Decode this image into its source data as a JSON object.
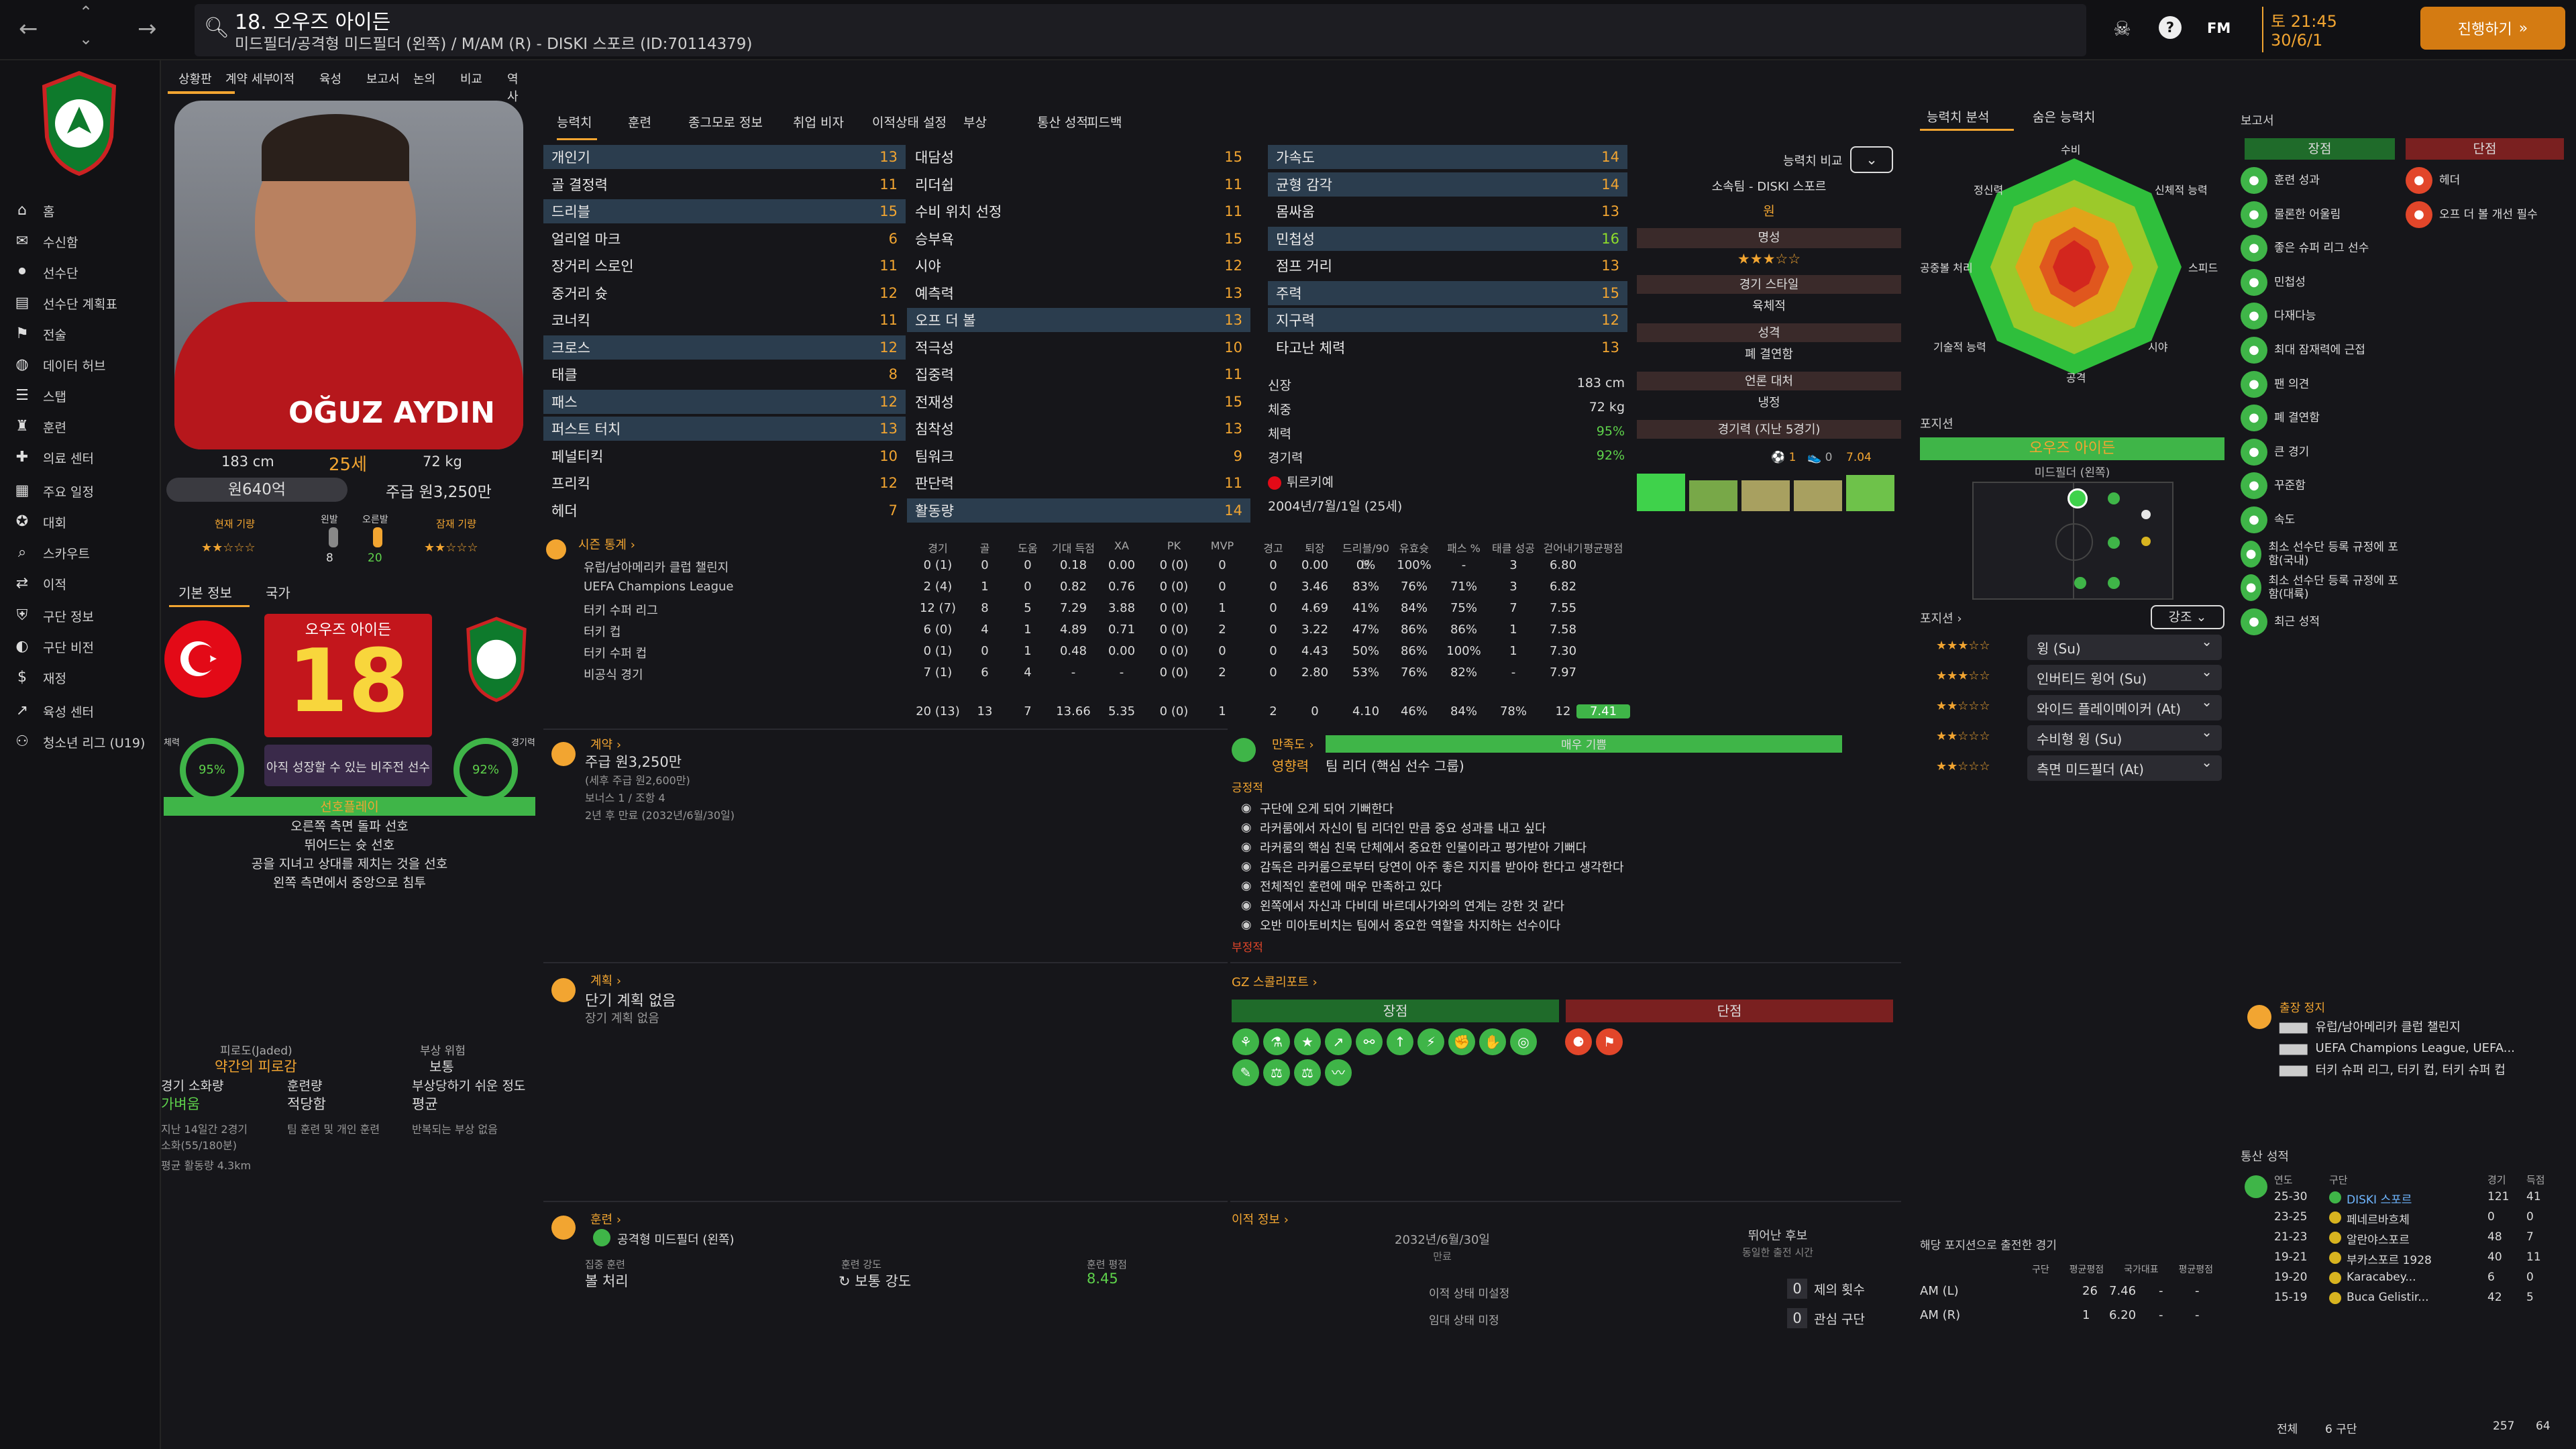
{
  "header": {
    "player_title": "18. 오우즈 아이든",
    "subtitle": "미드필더/공격형 미드필더 (왼쪽) / M/AM (R) - DISKI 스포르 (ID:70114379)",
    "date_time": "토 21:45",
    "date": "30/6/1",
    "continue_label": "진행하기",
    "fm_label": "FM"
  },
  "sidebar": {
    "items": [
      {
        "label": "홈",
        "icon": "home-icon"
      },
      {
        "label": "수신함",
        "icon": "inbox-icon"
      },
      {
        "label": "선수단",
        "icon": "squad-icon"
      },
      {
        "label": "선수단 계획표",
        "icon": "plan-icon"
      },
      {
        "label": "전술",
        "icon": "tactics-icon"
      },
      {
        "label": "데이터 허브",
        "icon": "data-icon"
      },
      {
        "label": "스탭",
        "icon": "staff-icon"
      },
      {
        "label": "훈련",
        "icon": "training-icon"
      },
      {
        "label": "의료 센터",
        "icon": "medical-icon"
      },
      {
        "label": "주요 일정",
        "icon": "calendar-icon"
      },
      {
        "label": "대회",
        "icon": "competition-icon"
      },
      {
        "label": "스카우트",
        "icon": "scout-icon"
      },
      {
        "label": "이적",
        "icon": "transfer-icon"
      },
      {
        "label": "구단 정보",
        "icon": "club-icon"
      },
      {
        "label": "구단 비전",
        "icon": "vision-icon"
      },
      {
        "label": "재정",
        "icon": "finance-icon"
      },
      {
        "label": "육성 센터",
        "icon": "dev-icon"
      },
      {
        "label": "청소년 리그 (U19)",
        "icon": "youth-icon"
      }
    ]
  },
  "subnav": [
    "상황판",
    "계약 세부",
    "이적",
    "육성",
    "보고서",
    "논의",
    "비교",
    "역사"
  ],
  "profile": {
    "name_on_photo": "OĞUZ AYDIN",
    "height": "183 cm",
    "age": "25세",
    "weight": "72 kg",
    "value": "원640억",
    "wage": "주급 원3,250만",
    "current_ability": "현재 기량",
    "potential_ability": "잠재 기량",
    "left_foot_label": "왼발",
    "right_foot_label": "오른발",
    "left_foot": "8",
    "right_foot": "20",
    "tab_basic": "기본 정보",
    "tab_nation": "국가",
    "kit_name": "오우즈 아이든",
    "kit_number": "18",
    "kit_note": "아직 성장할 수 있는 비주전 선수",
    "fitness_label": "체력",
    "fitness": "95%",
    "sharp_label": "경기력",
    "sharp": "92%",
    "traits_title": "선호플레이",
    "traits": [
      "오른쪽 측면 돌파 선호",
      "뛰어드는 슛 선호",
      "공을 지녀고 상대를 제치는 것을 선호",
      "왼쪽 측면에서 중앙으로 침투"
    ]
  },
  "condition": {
    "fatigue_label": "피로도(Jaded)",
    "fatigue_val": "약간의 피로감",
    "inj_label": "부상 위험",
    "inj_val": "보통",
    "load_label": "경기 소화량",
    "load_val": "가벼움",
    "train_label": "훈련량",
    "train_val": "적당함",
    "inj_prone": "부상당하기 쉬운 정도",
    "inj_prone_val": "평균",
    "load_note1": "지난 14일간 2경기",
    "load_note2": "소화(55/180분)",
    "load_note3": "평균 활동량 4.3km",
    "train_note": "팀 훈련 및 개인 훈련",
    "inj_note": "반복되는 부상 없음"
  },
  "tabs": [
    "능력치",
    "훈련",
    "종그모로 정보",
    "취업 비자",
    "이적상태 설정",
    "부상",
    "통산 성적",
    "피드백"
  ],
  "attrs1": [
    [
      "개인기",
      "13"
    ],
    [
      "골 결정력",
      "11"
    ],
    [
      "드리블",
      "15"
    ],
    [
      "얼리얼 마크",
      "6"
    ],
    [
      "장거리 스로인",
      "11"
    ],
    [
      "중거리 슛",
      "12"
    ],
    [
      "코너킥",
      "11"
    ],
    [
      "크로스",
      "12"
    ],
    [
      "태클",
      "8"
    ],
    [
      "패스",
      "12"
    ],
    [
      "퍼스트 터치",
      "13"
    ],
    [
      "페널티킥",
      "10"
    ],
    [
      "프리킥",
      "12"
    ],
    [
      "헤더",
      "7"
    ]
  ],
  "attrs2": [
    [
      "대담성",
      "15"
    ],
    [
      "리더쉽",
      "11"
    ],
    [
      "수비 위치 선정",
      "11"
    ],
    [
      "승부욕",
      "15"
    ],
    [
      "시야",
      "12"
    ],
    [
      "예측력",
      "13"
    ],
    [
      "오프 더 볼",
      "13"
    ],
    [
      "적극성",
      "10"
    ],
    [
      "집중력",
      "11"
    ],
    [
      "전재성",
      "15"
    ],
    [
      "침착성",
      "13"
    ],
    [
      "팀워크",
      "9"
    ],
    [
      "판단력",
      "11"
    ],
    [
      "활동량",
      "14"
    ]
  ],
  "attrs3": [
    [
      "가속도",
      "14"
    ],
    [
      "균형 감각",
      "14"
    ],
    [
      "몸싸움",
      "13"
    ],
    [
      "민첩성",
      "16"
    ],
    [
      "점프 거리",
      "13"
    ],
    [
      "주력",
      "15"
    ],
    [
      "지구력",
      "12"
    ],
    [
      "타고난 체력",
      "13"
    ]
  ],
  "phys_info": {
    "height_l": "신장",
    "height": "183 cm",
    "weight_l": "체중",
    "weight": "72 kg",
    "fit_l": "체력",
    "fit": "95%",
    "sharp_l": "경기력",
    "sharp": "92%",
    "nation": "튀르키예",
    "dob": "2004년/7월/1일 (25세)"
  },
  "compare": {
    "label": "능력치 비교",
    "club": "소속팀 - DISKI 스포르",
    "won": "원",
    "rep_l": "명성",
    "style_l": "경기 스타일",
    "style": "육체적",
    "pers_l": "성격",
    "pers": "폐 결연함",
    "media_l": "언론 대처",
    "media": "냉정",
    "form_l": "경기력 (지난 5경기)",
    "goals": "1",
    "assists": "0",
    "rating": "7.04"
  },
  "season": {
    "title": "시즌 통계",
    "headers": [
      "경기",
      "골",
      "도움",
      "기대 득점",
      "XA",
      "PK",
      "MVP",
      "경고",
      "퇴장",
      "드리블/90분",
      "유효슛",
      "패스 %",
      "태클 성공",
      "걷어내기",
      "평균평점"
    ],
    "rows": [
      [
        "유럽/남아메리카 클럽 챌린지",
        "0 (1)",
        "0",
        "0",
        "0.18",
        "0.00",
        "0 (0)",
        "0",
        "0",
        "0.00",
        "0%",
        "100%",
        "-",
        "3",
        "6.80"
      ],
      [
        "UEFA Champions League",
        "2 (4)",
        "1",
        "0",
        "0.82",
        "0.76",
        "0 (0)",
        "0",
        "0",
        "3.46",
        "83%",
        "76%",
        "71%",
        "3",
        "6.82"
      ],
      [
        "터키 수퍼 리그",
        "12 (7)",
        "8",
        "5",
        "7.29",
        "3.88",
        "0 (0)",
        "1",
        "0",
        "4.69",
        "41%",
        "84%",
        "75%",
        "7",
        "7.55"
      ],
      [
        "터키 컵",
        "6 (0)",
        "4",
        "1",
        "4.89",
        "0.71",
        "0 (0)",
        "2",
        "0",
        "3.22",
        "47%",
        "86%",
        "86%",
        "1",
        "7.58"
      ],
      [
        "터키 수퍼 컵",
        "0 (1)",
        "0",
        "1",
        "0.48",
        "0.00",
        "0 (0)",
        "0",
        "0",
        "4.43",
        "50%",
        "86%",
        "100%",
        "1",
        "7.30"
      ],
      [
        "비공식 경기",
        "7 (1)",
        "6",
        "4",
        "-",
        "-",
        "0 (0)",
        "2",
        "0",
        "2.80",
        "53%",
        "76%",
        "82%",
        "-",
        "7.97"
      ]
    ],
    "total": [
      "20 (13)",
      "13",
      "7",
      "13.66",
      "5.35",
      "0 (0)",
      "1",
      "2",
      "0",
      "4.10",
      "46%",
      "84%",
      "78%",
      "12",
      "7.41"
    ]
  },
  "contract": {
    "title": "계약",
    "wage": "주급 원3,250만",
    "wage_sub": "(세후 주급 원2,600만)",
    "bonus": "보너스 1 / 조항 4",
    "expiry": "2년 후 만료 (2032년/6월/30일)"
  },
  "satisfaction": {
    "title": "만족도",
    "level": "매우 기쁨",
    "lead_role": "영향력",
    "lead_val": "팀 리더 (핵심 선수 그룹)",
    "pos_label": "긍정적",
    "items": [
      "구단에 오게 되어 기뻐한다",
      "라커룸에서 자신이 팀 리더인 만큼 중요 성과를 내고 싶다",
      "라커룸의 핵심 친목 단체에서 중요한 인물이라고 평가받아 기뻐다",
      "감독은 라커룸으로부터 당연이 아주 좋은 지지를 받아야 한다고 생각한다",
      "전체적인 훈련에 매우 만족하고 있다",
      "왼쪽에서 자신과 다비데 바르데사가와의 연계는 강한 것 같다",
      "오반 미아토비치는 팀에서 중요한 역할을 차지하는 선수이다"
    ],
    "neg_label": "부정적"
  },
  "plan": {
    "title": "계획",
    "short": "단기 계획 없음",
    "long": "장기 계획 없음"
  },
  "scout": {
    "title": "GZ 스콜리포트",
    "strengths": "장점",
    "weaknesses": "단점"
  },
  "training": {
    "title": "훈련",
    "role": "공격형 미드필더 (왼쪽)",
    "focus_l": "집중 훈련",
    "focus": "볼 처리",
    "int_l": "훈련 강도",
    "int": "보통 강도",
    "rate_l": "훈련 평점",
    "rate": "8.45"
  },
  "transfer": {
    "title": "이적 정보",
    "date": "2032년/6월/30일",
    "date_l": "만료",
    "ret_l": "뛰어난 후보",
    "ret_sub": "동일한 출전 시간",
    "status1": "이적 상태 미설정",
    "status2": "임대 상태 미정",
    "offers_n": "0",
    "offers": "제의 횟수",
    "interest_n": "0",
    "interest": "관심 구단"
  },
  "analysis": {
    "tab1": "능력치 분석",
    "tab2": "숨은 능력치",
    "axes": [
      "수비",
      "신체적 능력",
      "스피드",
      "시야",
      "공격",
      "기술적 능력",
      "공중볼 처리",
      "정신력"
    ]
  },
  "position": {
    "title": "포지션",
    "name": "오우즈 아이든",
    "role": "미드필더 (왼쪽)",
    "roles_title": "포지션",
    "dd_label": "강조",
    "roles": [
      "윙 (Su)",
      "인버티드 윙어 (Su)",
      "와이드 플레이메이커 (At)",
      "수비형 윙 (Su)",
      "측면 미드필더 (At)"
    ],
    "apps_title": "해당 포지션으로 출전한 경기",
    "apps_h": [
      "구단",
      "평균평점",
      "국가대표",
      "평균평점"
    ],
    "apps": [
      [
        "AM (L)",
        "26",
        "7.46",
        "-",
        "-"
      ],
      [
        "AM (R)",
        "1",
        "6.20",
        "-",
        "-"
      ]
    ]
  },
  "report": {
    "title": "보고서",
    "pros": "장점",
    "cons": "단점",
    "pro_items": [
      "훈련 성과",
      "물론한 어울림",
      "좋은 슈퍼 리그 선수",
      "민첩성",
      "다재다능",
      "최대 잠재력에 근접",
      "팬 의견",
      "폐 결연함",
      "큰 경기",
      "꾸준함",
      "속도",
      "최소 선수단 등록 규정에 포함(국내)",
      "최소 선수단 등록 규정에 포함(대륙)",
      "최근 성적"
    ],
    "con_items": [
      "헤더",
      "오프 더 볼 개선 필수"
    ]
  },
  "suspension": {
    "title": "출장 정지",
    "items": [
      "유럽/남아메리카 클럽 챌린지",
      "UEFA Champions League, UEFA...",
      "터키 슈퍼 리그, 터키 컵, 터키 슈퍼 컵"
    ]
  },
  "career": {
    "title": "통산 성적",
    "h": [
      "연도",
      "구단",
      "경기",
      "득점"
    ],
    "rows": [
      [
        "25-30",
        "DISKI 스포르",
        "121",
        "41"
      ],
      [
        "23-25",
        "페네르바흐체",
        "0",
        "0"
      ],
      [
        "21-23",
        "알란야스포르",
        "48",
        "7"
      ],
      [
        "19-21",
        "부카스포르 1928",
        "40",
        "11"
      ],
      [
        "19-20",
        "Karacabey...",
        "6",
        "0"
      ],
      [
        "15-19",
        "Buca Gelistir...",
        "42",
        "5"
      ]
    ],
    "total_l": "전체",
    "total_clubs": "6 구단",
    "total_apps": "257",
    "total_goals": "64"
  }
}
